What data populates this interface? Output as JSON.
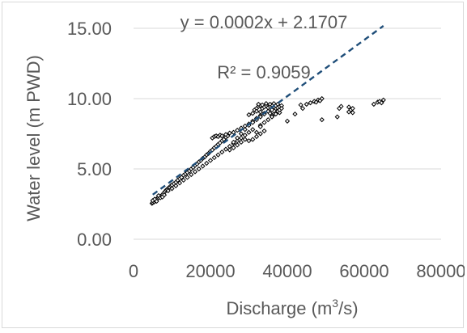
{
  "chart_data": {
    "type": "scatter",
    "title": "",
    "xlabel": "Discharge (m³/s)",
    "xlabel_parts": {
      "main": "Discharge (m",
      "sup": "3",
      "tail": "/s)"
    },
    "ylabel": "Water level (m PWD)",
    "xlim": [
      0,
      80000
    ],
    "ylim": [
      0,
      15
    ],
    "x_ticks": [
      "0",
      "20000",
      "40000",
      "60000",
      "80000"
    ],
    "y_ticks": [
      "0.00",
      "5.00",
      "10.00",
      "15.00"
    ],
    "grid": "horizontal",
    "legend": "none",
    "marker": "open-diamond",
    "marker_color": "#000000",
    "trendline": {
      "type": "linear",
      "slope": 0.0002,
      "intercept": 2.1707,
      "x_range": [
        5000,
        65000
      ],
      "color": "#1f4e79",
      "style": "dashed",
      "equation_label": "y = 0.0002x + 2.1707",
      "r2_label": "R² = 0.9059"
    },
    "series": [
      {
        "points": [
          [
            4800,
            2.55
          ],
          [
            5000,
            2.6
          ],
          [
            5200,
            2.7
          ],
          [
            5400,
            2.65
          ],
          [
            5600,
            2.75
          ],
          [
            5800,
            2.8
          ],
          [
            6000,
            2.85
          ],
          [
            6200,
            2.9
          ],
          [
            6500,
            2.95
          ],
          [
            6800,
            3.0
          ],
          [
            7000,
            3.05
          ],
          [
            7300,
            3.1
          ],
          [
            7600,
            3.2
          ],
          [
            7900,
            3.3
          ],
          [
            8200,
            3.4
          ],
          [
            8500,
            3.5
          ],
          [
            8800,
            3.55
          ],
          [
            9100,
            3.65
          ],
          [
            9400,
            3.7
          ],
          [
            9700,
            3.8
          ],
          [
            10000,
            3.85
          ],
          [
            10500,
            3.95
          ],
          [
            11000,
            4.05
          ],
          [
            11500,
            4.2
          ],
          [
            12000,
            4.3
          ],
          [
            12500,
            4.4
          ],
          [
            13000,
            4.55
          ],
          [
            13500,
            4.65
          ],
          [
            14000,
            4.75
          ],
          [
            14500,
            4.85
          ],
          [
            15000,
            5.0
          ],
          [
            15500,
            5.1
          ],
          [
            16000,
            5.25
          ],
          [
            16500,
            5.35
          ],
          [
            17000,
            5.5
          ],
          [
            17500,
            5.6
          ],
          [
            18000,
            5.75
          ],
          [
            18500,
            5.85
          ],
          [
            19000,
            6.0
          ],
          [
            19500,
            6.1
          ],
          [
            20000,
            6.25
          ],
          [
            20500,
            6.35
          ],
          [
            21000,
            6.5
          ],
          [
            21500,
            6.6
          ],
          [
            22000,
            6.75
          ],
          [
            22500,
            6.85
          ],
          [
            23000,
            7.0
          ],
          [
            23500,
            7.1
          ],
          [
            24000,
            7.25
          ],
          [
            24500,
            7.35
          ],
          [
            5000,
            2.75
          ],
          [
            5500,
            2.85
          ],
          [
            6000,
            2.7
          ],
          [
            6500,
            3.1
          ],
          [
            7000,
            2.95
          ],
          [
            7500,
            3.0
          ],
          [
            8000,
            3.15
          ],
          [
            9000,
            3.45
          ],
          [
            10000,
            3.6
          ],
          [
            11000,
            3.8
          ],
          [
            12000,
            4.0
          ],
          [
            13000,
            4.2
          ],
          [
            14000,
            4.4
          ],
          [
            15000,
            4.6
          ],
          [
            16000,
            4.8
          ],
          [
            17000,
            5.0
          ],
          [
            18000,
            5.2
          ],
          [
            19000,
            5.4
          ],
          [
            20000,
            5.6
          ],
          [
            21000,
            5.8
          ],
          [
            22000,
            6.0
          ],
          [
            23000,
            6.2
          ],
          [
            24000,
            6.4
          ],
          [
            25000,
            6.6
          ],
          [
            26000,
            6.8
          ],
          [
            27000,
            7.0
          ],
          [
            28000,
            7.2
          ],
          [
            29000,
            7.4
          ],
          [
            30000,
            7.6
          ],
          [
            31000,
            7.8
          ],
          [
            20500,
            7.2
          ],
          [
            21000,
            7.3
          ],
          [
            21500,
            7.35
          ],
          [
            22000,
            7.3
          ],
          [
            22500,
            7.4
          ],
          [
            23000,
            7.35
          ],
          [
            24000,
            7.45
          ],
          [
            25000,
            7.55
          ],
          [
            26000,
            7.6
          ],
          [
            27000,
            7.75
          ],
          [
            28000,
            7.9
          ],
          [
            29000,
            8.05
          ],
          [
            30000,
            8.2
          ],
          [
            31000,
            8.4
          ],
          [
            32000,
            8.6
          ],
          [
            33000,
            8.8
          ],
          [
            34000,
            8.95
          ],
          [
            35000,
            9.1
          ],
          [
            36000,
            9.2
          ],
          [
            37000,
            9.3
          ],
          [
            31500,
            9.2
          ],
          [
            32000,
            9.3
          ],
          [
            32500,
            9.45
          ],
          [
            33000,
            9.5
          ],
          [
            33500,
            9.3
          ],
          [
            34000,
            9.4
          ],
          [
            34500,
            9.5
          ],
          [
            35000,
            9.35
          ],
          [
            35500,
            9.45
          ],
          [
            36000,
            9.55
          ],
          [
            36500,
            9.4
          ],
          [
            37000,
            9.5
          ],
          [
            37500,
            9.35
          ],
          [
            38000,
            9.45
          ],
          [
            38500,
            9.5
          ],
          [
            37500,
            9.1
          ],
          [
            37000,
            8.95
          ],
          [
            36500,
            8.9
          ],
          [
            36000,
            8.8
          ],
          [
            35500,
            8.95
          ],
          [
            30000,
            7.0
          ],
          [
            31000,
            7.1
          ],
          [
            32000,
            7.3
          ],
          [
            33000,
            7.5
          ],
          [
            34000,
            7.7
          ],
          [
            28000,
            6.9
          ],
          [
            29000,
            7.1
          ],
          [
            27000,
            6.7
          ],
          [
            26000,
            6.5
          ],
          [
            25000,
            6.35
          ],
          [
            33000,
            8.1
          ],
          [
            34000,
            8.3
          ],
          [
            35000,
            8.5
          ],
          [
            36000,
            8.7
          ],
          [
            37000,
            8.9
          ],
          [
            38000,
            9.0
          ],
          [
            33000,
            9.05
          ],
          [
            32000,
            9.1
          ],
          [
            31000,
            8.95
          ],
          [
            30000,
            8.85
          ],
          [
            32000,
            7.6
          ],
          [
            33000,
            8.0
          ],
          [
            38000,
            9.2
          ],
          [
            38500,
            9.3
          ],
          [
            37500,
            9.6
          ],
          [
            36500,
            9.65
          ],
          [
            35500,
            9.6
          ],
          [
            34500,
            9.65
          ],
          [
            33500,
            9.55
          ],
          [
            32500,
            9.6
          ],
          [
            26000,
            6.9
          ],
          [
            27000,
            7.2
          ],
          [
            28000,
            7.5
          ],
          [
            29000,
            7.8
          ],
          [
            30000,
            8.1
          ],
          [
            31000,
            8.3
          ],
          [
            32000,
            8.5
          ],
          [
            33000,
            8.7
          ],
          [
            34000,
            8.9
          ],
          [
            35000,
            9.1
          ],
          [
            40000,
            8.4
          ],
          [
            42000,
            8.9
          ],
          [
            44000,
            9.3
          ],
          [
            45000,
            9.6
          ],
          [
            46000,
            9.7
          ],
          [
            47000,
            9.8
          ],
          [
            48000,
            9.9
          ],
          [
            49000,
            10.0
          ],
          [
            48500,
            9.85
          ],
          [
            47500,
            9.75
          ],
          [
            43500,
            9.55
          ],
          [
            49000,
            8.5
          ],
          [
            53500,
            9.3
          ],
          [
            54000,
            9.45
          ],
          [
            53000,
            8.7
          ],
          [
            56000,
            9.4
          ],
          [
            56500,
            9.2
          ],
          [
            57000,
            9.0
          ],
          [
            56000,
            9.05
          ],
          [
            57000,
            9.3
          ],
          [
            62500,
            9.6
          ],
          [
            63500,
            9.75
          ],
          [
            64000,
            9.8
          ],
          [
            65000,
            9.9
          ],
          [
            64500,
            9.7
          ]
        ]
      }
    ]
  }
}
